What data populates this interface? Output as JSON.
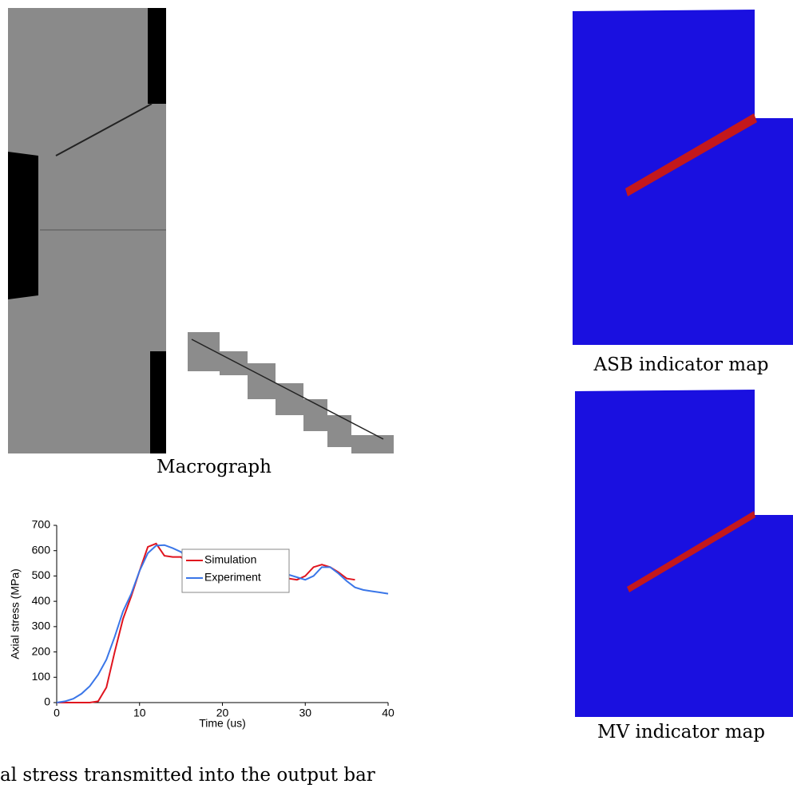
{
  "captions": [
    "Macrograph",
    "ASB indicator map",
    "MV indicator map",
    "al stress transmitted into the output bar"
  ],
  "chart_data": {
    "type": "line",
    "x_label": "Time (us)",
    "y_label": "Axial stress (MPa)",
    "x": [
      0,
      1,
      2,
      3,
      4,
      5,
      6,
      7,
      8,
      9,
      10,
      11,
      12,
      13,
      14,
      15,
      16,
      17,
      18,
      19,
      20,
      21,
      22,
      23,
      24,
      25,
      26,
      27,
      28,
      29,
      30,
      31,
      32,
      33,
      34,
      35,
      36,
      37,
      38,
      39,
      40
    ],
    "series": [
      {
        "name": "Simulation",
        "color": "#e0141e",
        "values": [
          0,
          0,
          0,
          0,
          0,
          5,
          60,
          200,
          330,
          420,
          520,
          615,
          628,
          580,
          575,
          575,
          540,
          495,
          490,
          495,
          530,
          555,
          560,
          550,
          560,
          585,
          580,
          530,
          490,
          485,
          500,
          535,
          545,
          535,
          515,
          490,
          485,
          null,
          null,
          null,
          null
        ]
      },
      {
        "name": "Experiment",
        "color": "#3a76e8",
        "values": [
          0,
          5,
          15,
          35,
          65,
          110,
          170,
          260,
          360,
          430,
          520,
          590,
          620,
          622,
          610,
          595,
          560,
          510,
          475,
          485,
          520,
          545,
          555,
          570,
          588,
          580,
          545,
          520,
          505,
          495,
          485,
          500,
          535,
          535,
          510,
          480,
          455,
          445,
          440,
          435,
          430
        ]
      }
    ],
    "xlim": [
      0,
      40
    ],
    "ylim": [
      0,
      700
    ],
    "xticks": [
      0,
      10,
      20,
      30,
      40
    ],
    "yticks": [
      0,
      100,
      200,
      300,
      400,
      500,
      600,
      700
    ],
    "grid": false
  }
}
